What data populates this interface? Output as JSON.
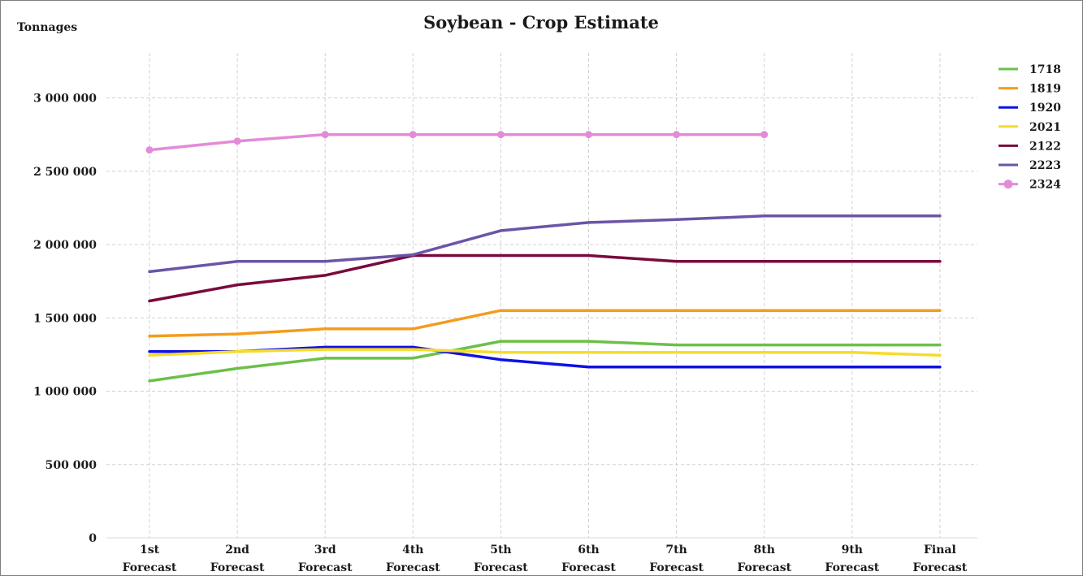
{
  "chart_data": {
    "type": "line",
    "title": "Soybean - Crop Estimate",
    "ylabel": "Tonnages",
    "xlabel": "",
    "ylim": [
      0,
      3300000
    ],
    "yticks": [
      0,
      500000,
      1000000,
      1500000,
      2000000,
      2500000,
      3000000
    ],
    "ytick_labels": [
      "0",
      "500 000",
      "1 000 000",
      "1 500 000",
      "2 000 000",
      "2 500 000",
      "3 000 000"
    ],
    "categories": [
      [
        "1st",
        "Forecast"
      ],
      [
        "2nd",
        "Forecast"
      ],
      [
        "3rd",
        "Forecast"
      ],
      [
        "4th",
        "Forecast"
      ],
      [
        "5th",
        "Forecast"
      ],
      [
        "6th",
        "Forecast"
      ],
      [
        "7th",
        "Forecast"
      ],
      [
        "8th",
        "Forecast"
      ],
      [
        "9th",
        "Forecast"
      ],
      [
        "Final",
        "Forecast"
      ]
    ],
    "grid": true,
    "legend_position": "right",
    "series": [
      {
        "name": "1718",
        "color": "#6cc04a",
        "marker": false,
        "values": [
          1070000,
          1155000,
          1225000,
          1225000,
          1340000,
          1340000,
          1315000,
          1315000,
          1315000,
          1315000
        ]
      },
      {
        "name": "1819",
        "color": "#f39c1e",
        "marker": false,
        "values": [
          1375000,
          1390000,
          1425000,
          1425000,
          1550000,
          1550000,
          1550000,
          1550000,
          1550000,
          1550000
        ]
      },
      {
        "name": "1920",
        "color": "#1010e6",
        "marker": false,
        "values": [
          1270000,
          1270000,
          1300000,
          1300000,
          1215000,
          1165000,
          1165000,
          1165000,
          1165000,
          1165000
        ]
      },
      {
        "name": "2021",
        "color": "#f6dc2a",
        "marker": false,
        "values": [
          1245000,
          1270000,
          1285000,
          1285000,
          1265000,
          1265000,
          1265000,
          1265000,
          1265000,
          1245000
        ]
      },
      {
        "name": "2122",
        "color": "#7a0a3c",
        "marker": false,
        "values": [
          1615000,
          1725000,
          1790000,
          1925000,
          1925000,
          1925000,
          1885000,
          1885000,
          1885000,
          1885000
        ]
      },
      {
        "name": "2223",
        "color": "#6a55a6",
        "marker": false,
        "values": [
          1815000,
          1885000,
          1885000,
          1930000,
          2095000,
          2150000,
          2170000,
          2195000,
          2195000,
          2195000
        ]
      },
      {
        "name": "2324",
        "color": "#e38bd9",
        "marker": true,
        "values": [
          2645000,
          2705000,
          2750000,
          2750000,
          2750000,
          2750000,
          2750000,
          2750000,
          null,
          null
        ]
      }
    ]
  }
}
